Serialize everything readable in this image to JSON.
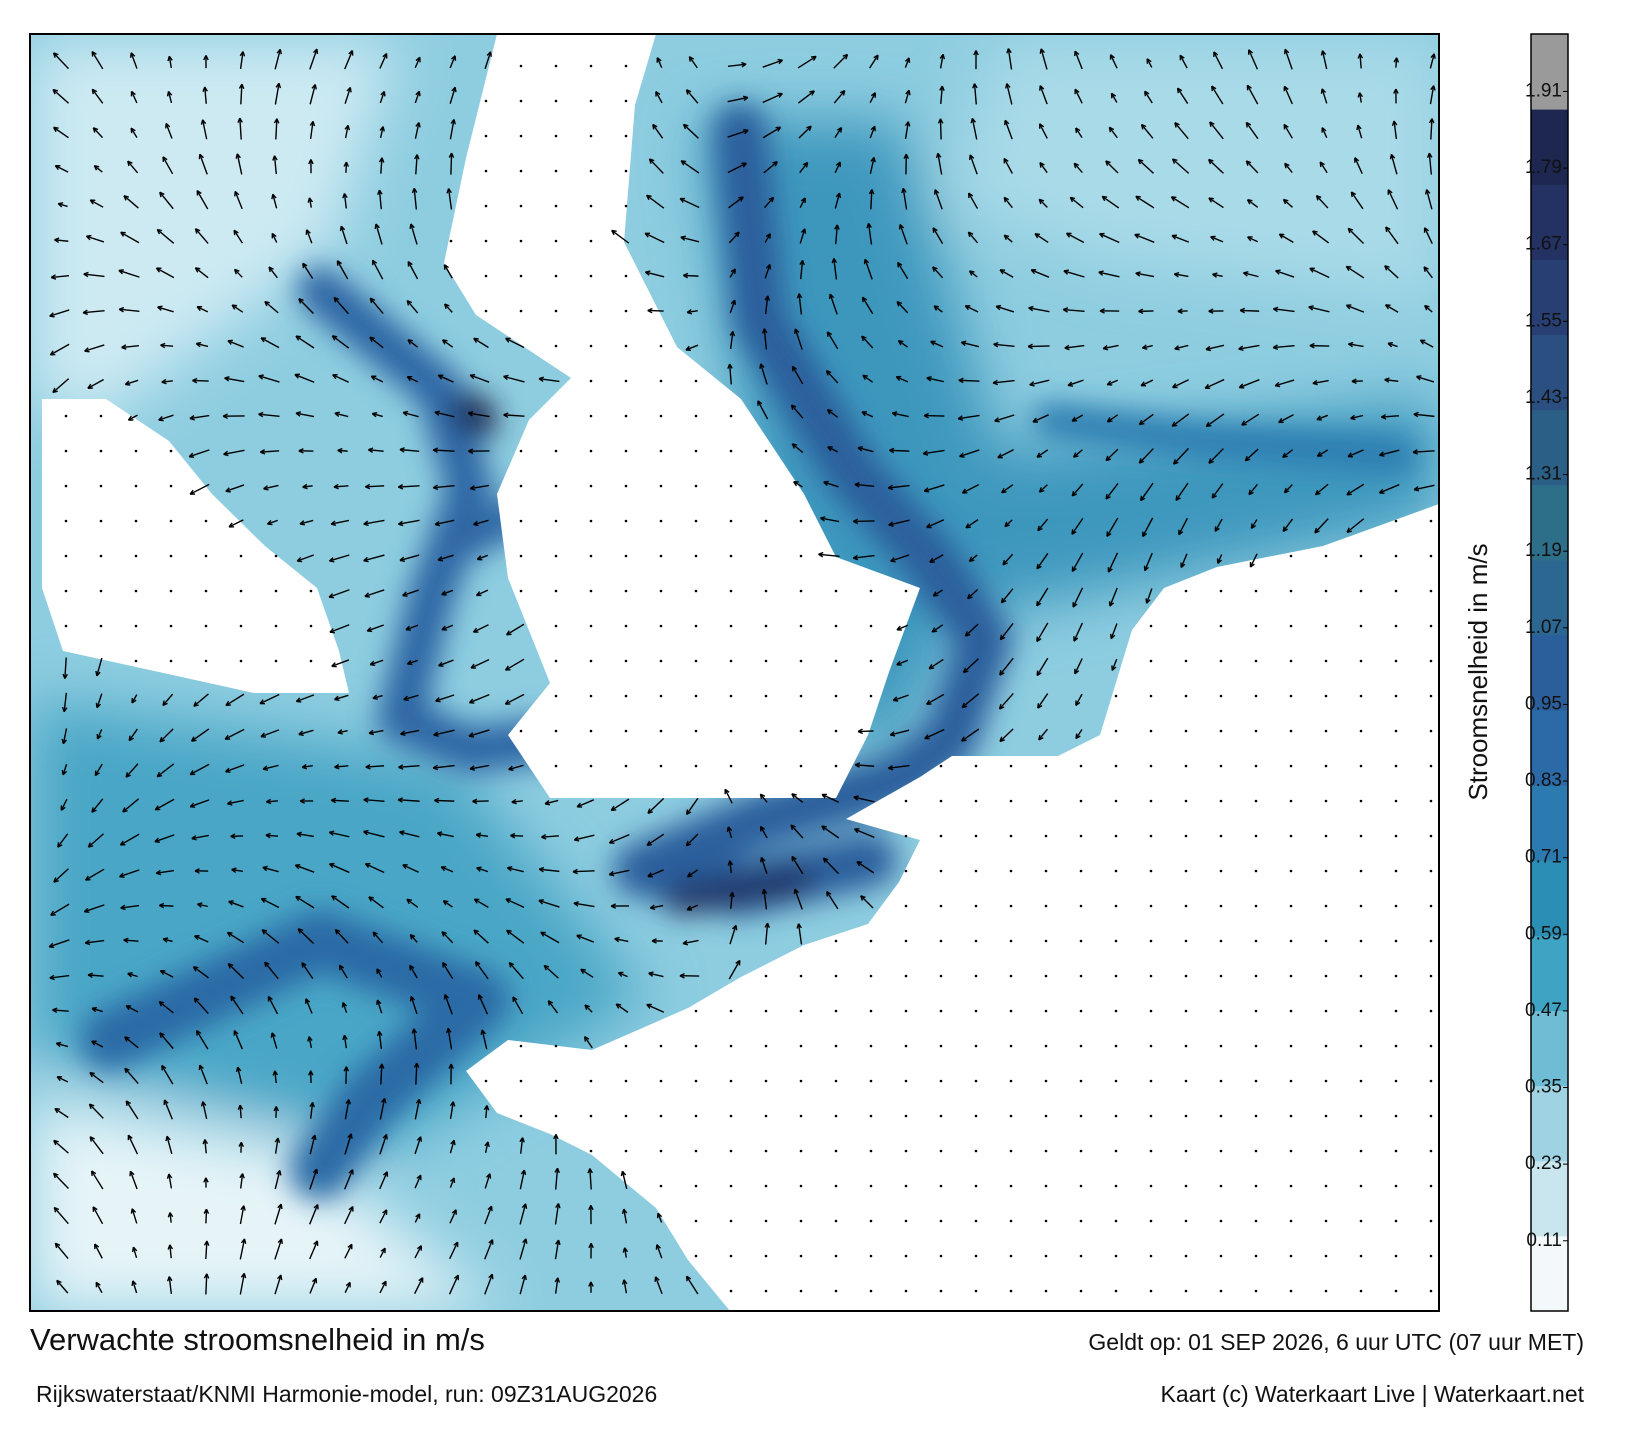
{
  "header": {
    "title": "Verwachte stroomsnelheid in m/s",
    "subtitle": "Rijkswaterstaat/KNMI Harmonie-model, run: 09Z31AUG2026",
    "valid_time": "Geldt op: 01 SEP 2026, 6 uur UTC (07 uur MET)",
    "credit": "Kaart (c) Waterkaart Live | Waterkaart.net"
  },
  "colorbar": {
    "label": "Stroomsnelheid in m/s",
    "clim": [
      0,
      2
    ],
    "ticks": [
      0.11,
      0.23,
      0.35,
      0.47,
      0.59,
      0.71,
      0.83,
      0.95,
      1.07,
      1.19,
      1.31,
      1.43,
      1.55,
      1.67,
      1.79,
      1.91
    ],
    "colors": [
      "#f3f9fb",
      "#c9e6ef",
      "#9fd3e3",
      "#6fbdd5",
      "#3fa3c3",
      "#2b8fb5",
      "#2c7bb0",
      "#2b6aa6",
      "#2a5f9c",
      "#2c6791",
      "#2d6f88",
      "#2b5f86",
      "#2a4f80",
      "#273f72",
      "#233262",
      "#1d2750",
      "#9a9a9a"
    ]
  }
}
